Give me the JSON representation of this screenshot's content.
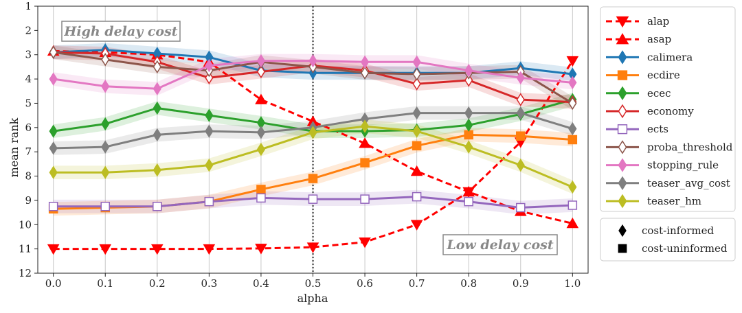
{
  "chart_data": {
    "type": "line",
    "xlabel": "alpha",
    "ylabel": "mean rank",
    "x": [
      0.0,
      0.1,
      0.2,
      0.3,
      0.4,
      0.5,
      0.6,
      0.7,
      0.8,
      0.9,
      1.0
    ],
    "x_tick_labels": [
      "0.0",
      "0.1",
      "0.2",
      "0.3",
      "0.4",
      "0.5",
      "0.6",
      "0.7",
      "0.8",
      "0.9",
      "1.0"
    ],
    "y_tick_labels": [
      "1",
      "2",
      "3",
      "4",
      "5",
      "6",
      "7",
      "8",
      "9",
      "10",
      "11",
      "12"
    ],
    "ylim": [
      12,
      1
    ],
    "y_inverted": true,
    "xlim": [
      -0.03,
      1.03
    ],
    "vline_x": 0.5,
    "annotations": {
      "high": "High delay cost",
      "low": "Low delay cost"
    },
    "series": [
      {
        "name": "alap",
        "color": "#ff0000",
        "marker": "triangle-down",
        "dashed": true,
        "filled": true,
        "values": [
          11.0,
          11.0,
          11.0,
          11.0,
          10.98,
          10.93,
          10.72,
          10.0,
          8.65,
          6.6,
          3.25
        ]
      },
      {
        "name": "asap",
        "color": "#ff0000",
        "marker": "triangle-up",
        "dashed": true,
        "filled": true,
        "values": [
          2.85,
          2.9,
          3.0,
          3.3,
          4.85,
          5.75,
          6.65,
          7.8,
          8.65,
          9.45,
          9.95
        ]
      },
      {
        "name": "calimera",
        "color": "#1f77b4",
        "marker": "diamond",
        "filled": true,
        "values": [
          2.9,
          2.8,
          2.95,
          3.1,
          3.65,
          3.75,
          3.75,
          3.75,
          3.75,
          3.55,
          3.8
        ]
      },
      {
        "name": "ecdire",
        "color": "#ff7f0e",
        "marker": "square",
        "filled": true,
        "values": [
          9.35,
          9.3,
          9.25,
          9.05,
          8.55,
          8.1,
          7.45,
          6.75,
          6.3,
          6.35,
          6.5
        ]
      },
      {
        "name": "ecec",
        "color": "#2ca02c",
        "marker": "diamond",
        "filled": true,
        "values": [
          6.15,
          5.85,
          5.2,
          5.5,
          5.8,
          6.15,
          6.15,
          6.1,
          5.9,
          5.45,
          4.85
        ]
      },
      {
        "name": "economy",
        "color": "#d62728",
        "marker": "diamond",
        "filled": false,
        "values": [
          2.9,
          2.95,
          3.3,
          3.95,
          3.7,
          3.45,
          3.65,
          4.2,
          4.05,
          4.85,
          4.95
        ]
      },
      {
        "name": "ects",
        "color": "#9467bd",
        "marker": "square",
        "filled": false,
        "values": [
          9.25,
          9.25,
          9.25,
          9.05,
          8.9,
          8.95,
          8.95,
          8.85,
          9.05,
          9.3,
          9.2
        ]
      },
      {
        "name": "proba_threshold",
        "color": "#8c564b",
        "marker": "diamond",
        "filled": false,
        "values": [
          2.9,
          3.2,
          3.5,
          3.65,
          3.3,
          3.5,
          3.75,
          3.8,
          3.75,
          3.7,
          5.0
        ]
      },
      {
        "name": "stopping_rule",
        "color": "#e377c2",
        "marker": "diamond",
        "filled": true,
        "values": [
          4.0,
          4.3,
          4.4,
          3.45,
          3.25,
          3.25,
          3.3,
          3.3,
          3.65,
          3.95,
          4.15
        ]
      },
      {
        "name": "teaser_avg_cost",
        "color": "#7f7f7f",
        "marker": "diamond",
        "filled": true,
        "values": [
          6.85,
          6.8,
          6.3,
          6.15,
          6.2,
          6.0,
          5.65,
          5.4,
          5.4,
          5.4,
          6.05
        ]
      },
      {
        "name": "teaser_hm",
        "color": "#bcbd22",
        "marker": "diamond",
        "filled": true,
        "values": [
          7.85,
          7.85,
          7.75,
          7.55,
          6.9,
          6.2,
          5.95,
          6.15,
          6.8,
          7.55,
          8.45
        ]
      }
    ],
    "marker_legend": [
      {
        "label": "cost-informed",
        "marker": "diamond"
      },
      {
        "label": "cost-uninformed",
        "marker": "square"
      }
    ]
  }
}
